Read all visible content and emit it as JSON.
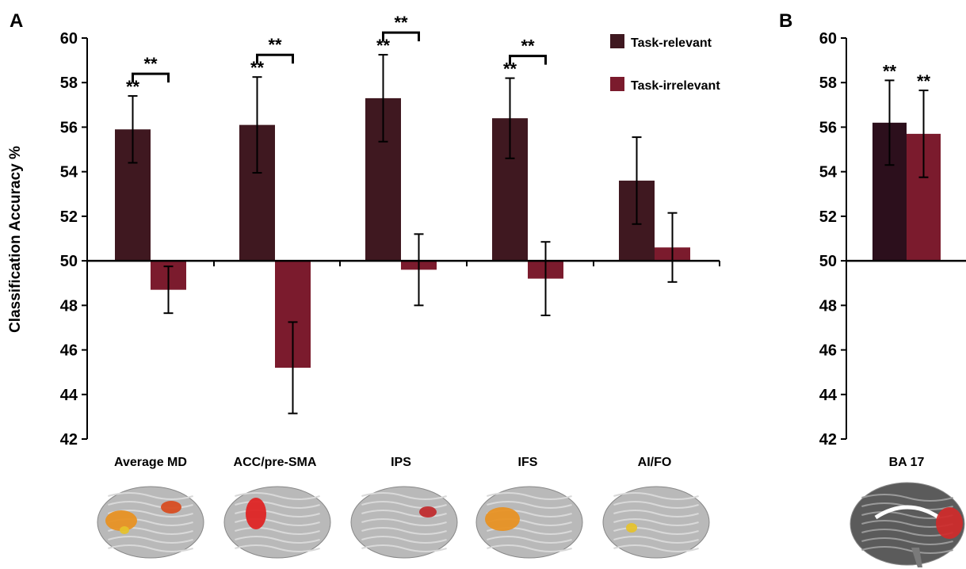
{
  "chart_data": [
    {
      "type": "bar",
      "panel": "A",
      "ylabel": "Classification Accuracy %",
      "ylim": [
        42,
        60
      ],
      "yticks": [
        42,
        44,
        46,
        48,
        50,
        52,
        54,
        56,
        58,
        60
      ],
      "baseline": 50,
      "categories": [
        "Average MD",
        "ACC/pre-SMA",
        "IPS",
        "IFS",
        "AI/FO"
      ],
      "legend_placement": "top-right",
      "series": [
        {
          "name": "Task-relevant",
          "color": "#3f1820",
          "values": [
            55.9,
            56.1,
            57.3,
            56.4,
            53.6
          ],
          "errors": [
            1.5,
            2.15,
            1.95,
            1.8,
            1.95
          ],
          "significance": [
            "**",
            "**",
            "**",
            "**",
            ""
          ]
        },
        {
          "name": "Task-irrelevant",
          "color": "#7b1b2d",
          "values": [
            48.7,
            45.2,
            49.6,
            49.2,
            50.6
          ],
          "errors": [
            1.05,
            2.05,
            1.6,
            1.65,
            1.55
          ],
          "significance": [
            "",
            "",
            "",
            "",
            ""
          ]
        }
      ],
      "pair_significance": [
        "**",
        "**",
        "**",
        "**",
        ""
      ]
    },
    {
      "type": "bar",
      "panel": "B",
      "ylim": [
        42,
        60
      ],
      "yticks": [
        42,
        44,
        46,
        48,
        50,
        52,
        54,
        56,
        58,
        60
      ],
      "baseline": 50,
      "categories": [
        "BA 17"
      ],
      "series": [
        {
          "name": "Task-relevant",
          "color": "#2c0f1c",
          "values": [
            56.2
          ],
          "errors": [
            1.9
          ],
          "significance": [
            "**"
          ]
        },
        {
          "name": "Task-irrelevant",
          "color": "#7b1b2d",
          "values": [
            55.7
          ],
          "errors": [
            1.95
          ],
          "significance": [
            "**"
          ]
        }
      ]
    }
  ],
  "brain_images": [
    {
      "region": "Average MD",
      "colors": [
        "#e8901e",
        "#d84a1c",
        "#e6c22a"
      ]
    },
    {
      "region": "ACC/pre-SMA",
      "colors": [
        "#e01f1f"
      ]
    },
    {
      "region": "IPS",
      "colors": [
        "#c0282a"
      ]
    },
    {
      "region": "IFS",
      "colors": [
        "#e8901e"
      ]
    },
    {
      "region": "AI/FO",
      "colors": [
        "#e6c22a"
      ]
    },
    {
      "region": "BA 17",
      "colors": [
        "#d02a2a"
      ]
    }
  ]
}
